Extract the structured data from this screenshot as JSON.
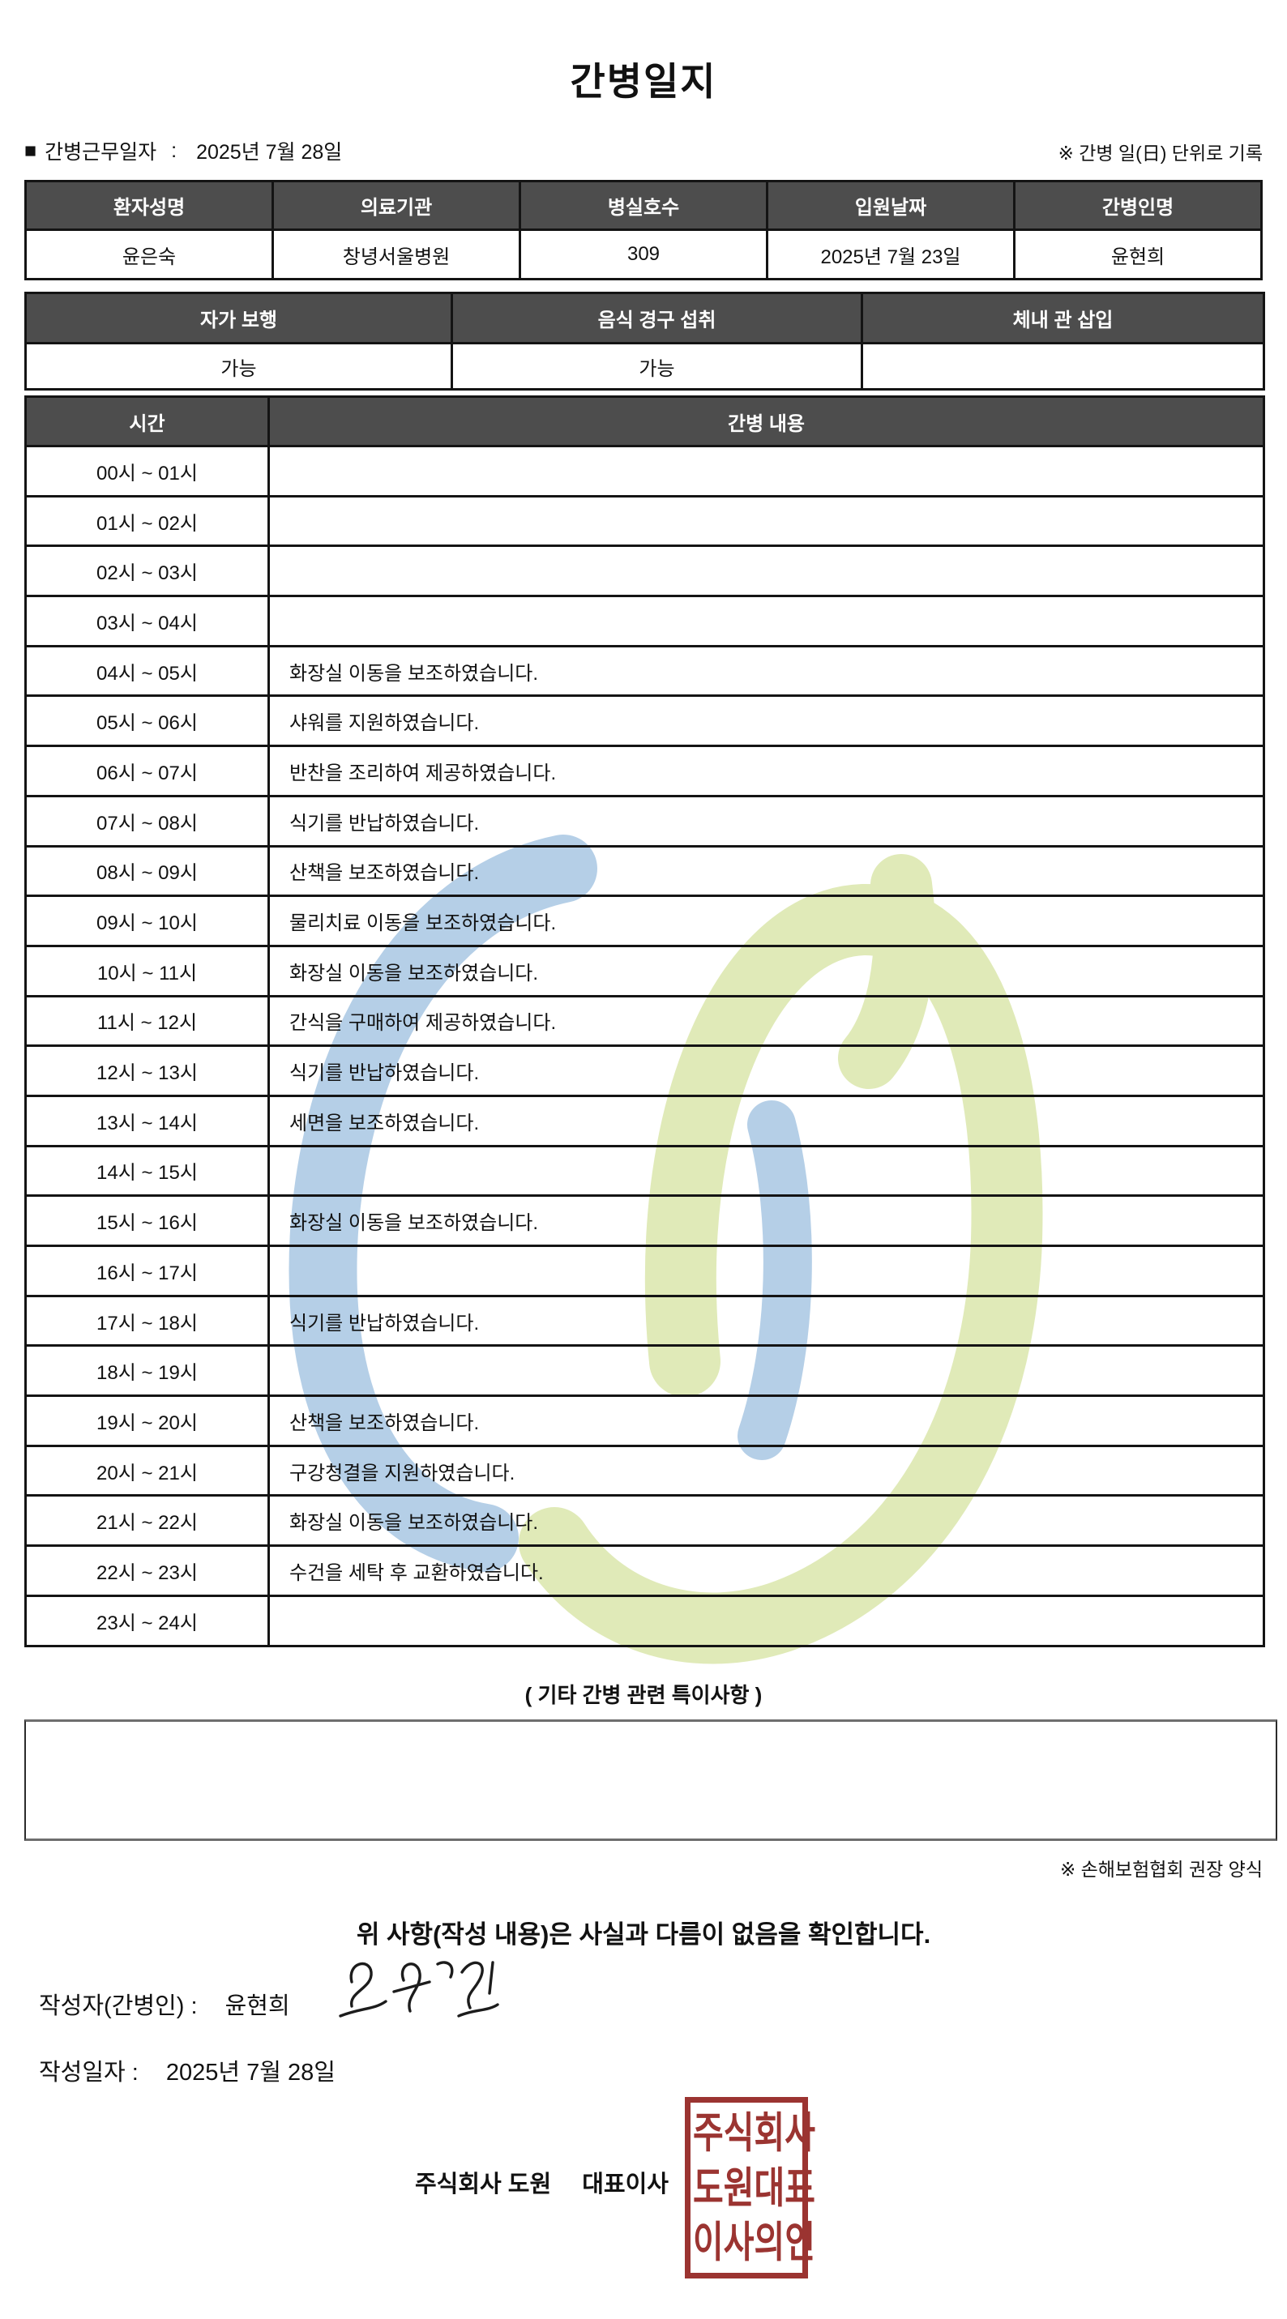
{
  "page": {
    "title": "간병일지"
  },
  "meta": {
    "bullet": "■",
    "work_date_label": "간병근무일자",
    "separator": ":",
    "work_date_value": "2025년 7월 28일",
    "unit_note": "※ 간병 일(日) 단위로 기록"
  },
  "info_table": {
    "headers": [
      "환자성명",
      "의료기관",
      "병실호수",
      "입원날짜",
      "간병인명"
    ],
    "values": [
      "윤은숙",
      "창녕서울병원",
      "309",
      "2025년 7월 23일",
      "윤현희"
    ]
  },
  "status_table": {
    "headers": [
      "자가 보행",
      "음식 경구 섭취",
      "체내 관 삽입"
    ],
    "values": [
      "가능",
      "가능",
      ""
    ]
  },
  "care_table": {
    "time_header": "시간",
    "content_header": "간병 내용",
    "rows": [
      {
        "time": "00시 ~ 01시",
        "content": ""
      },
      {
        "time": "01시 ~ 02시",
        "content": ""
      },
      {
        "time": "02시 ~ 03시",
        "content": ""
      },
      {
        "time": "03시 ~ 04시",
        "content": ""
      },
      {
        "time": "04시 ~ 05시",
        "content": "화장실 이동을 보조하였습니다."
      },
      {
        "time": "05시 ~ 06시",
        "content": "샤워를 지원하였습니다."
      },
      {
        "time": "06시 ~ 07시",
        "content": "반찬을 조리하여 제공하였습니다."
      },
      {
        "time": "07시 ~ 08시",
        "content": "식기를 반납하였습니다."
      },
      {
        "time": "08시 ~ 09시",
        "content": "산책을 보조하였습니다."
      },
      {
        "time": "09시 ~ 10시",
        "content": "물리치료 이동을 보조하였습니다."
      },
      {
        "time": "10시 ~ 11시",
        "content": "화장실 이동을 보조하였습니다."
      },
      {
        "time": "11시 ~ 12시",
        "content": "간식을 구매하여 제공하였습니다."
      },
      {
        "time": "12시 ~ 13시",
        "content": "식기를 반납하였습니다."
      },
      {
        "time": "13시 ~ 14시",
        "content": "세면을 보조하였습니다."
      },
      {
        "time": "14시 ~ 15시",
        "content": ""
      },
      {
        "time": "15시 ~ 16시",
        "content": "화장실 이동을 보조하였습니다."
      },
      {
        "time": "16시 ~ 17시",
        "content": ""
      },
      {
        "time": "17시 ~ 18시",
        "content": "식기를 반납하였습니다."
      },
      {
        "time": "18시 ~ 19시",
        "content": ""
      },
      {
        "time": "19시 ~ 20시",
        "content": "산책을 보조하였습니다."
      },
      {
        "time": "20시 ~ 21시",
        "content": "구강청결을 지원하였습니다."
      },
      {
        "time": "21시 ~ 22시",
        "content": "화장실 이동을 보조하였습니다."
      },
      {
        "time": "22시 ~ 23시",
        "content": "수건을 세탁 후 교환하였습니다."
      },
      {
        "time": "23시 ~ 24시",
        "content": ""
      }
    ]
  },
  "notes": {
    "section_title": "( 기타 간병 관련 특이사항 )",
    "content": "",
    "form_note": "※ 손해보험협회 권장 양식"
  },
  "confirmation": "위 사항(작성 내용)은 사실과 다름이 없음을 확인합니다.",
  "footer": {
    "writer_label": "작성자(간병인) :",
    "writer_name": "윤현희",
    "date_label": "작성일자 :",
    "date_value": "2025년 7월 28일",
    "company_name": "주식회사 도원",
    "company_title": "대표이사",
    "stamp_lines": [
      "주식회사",
      "도원대표",
      "이사의인"
    ]
  },
  "colors": {
    "header_bg": "#4d4d4d",
    "header_text": "#ffffff",
    "border": "#141414",
    "stamp_red": "#9b3431",
    "watermark_blue": "#b5cfe7",
    "watermark_green": "#e0eab8"
  }
}
